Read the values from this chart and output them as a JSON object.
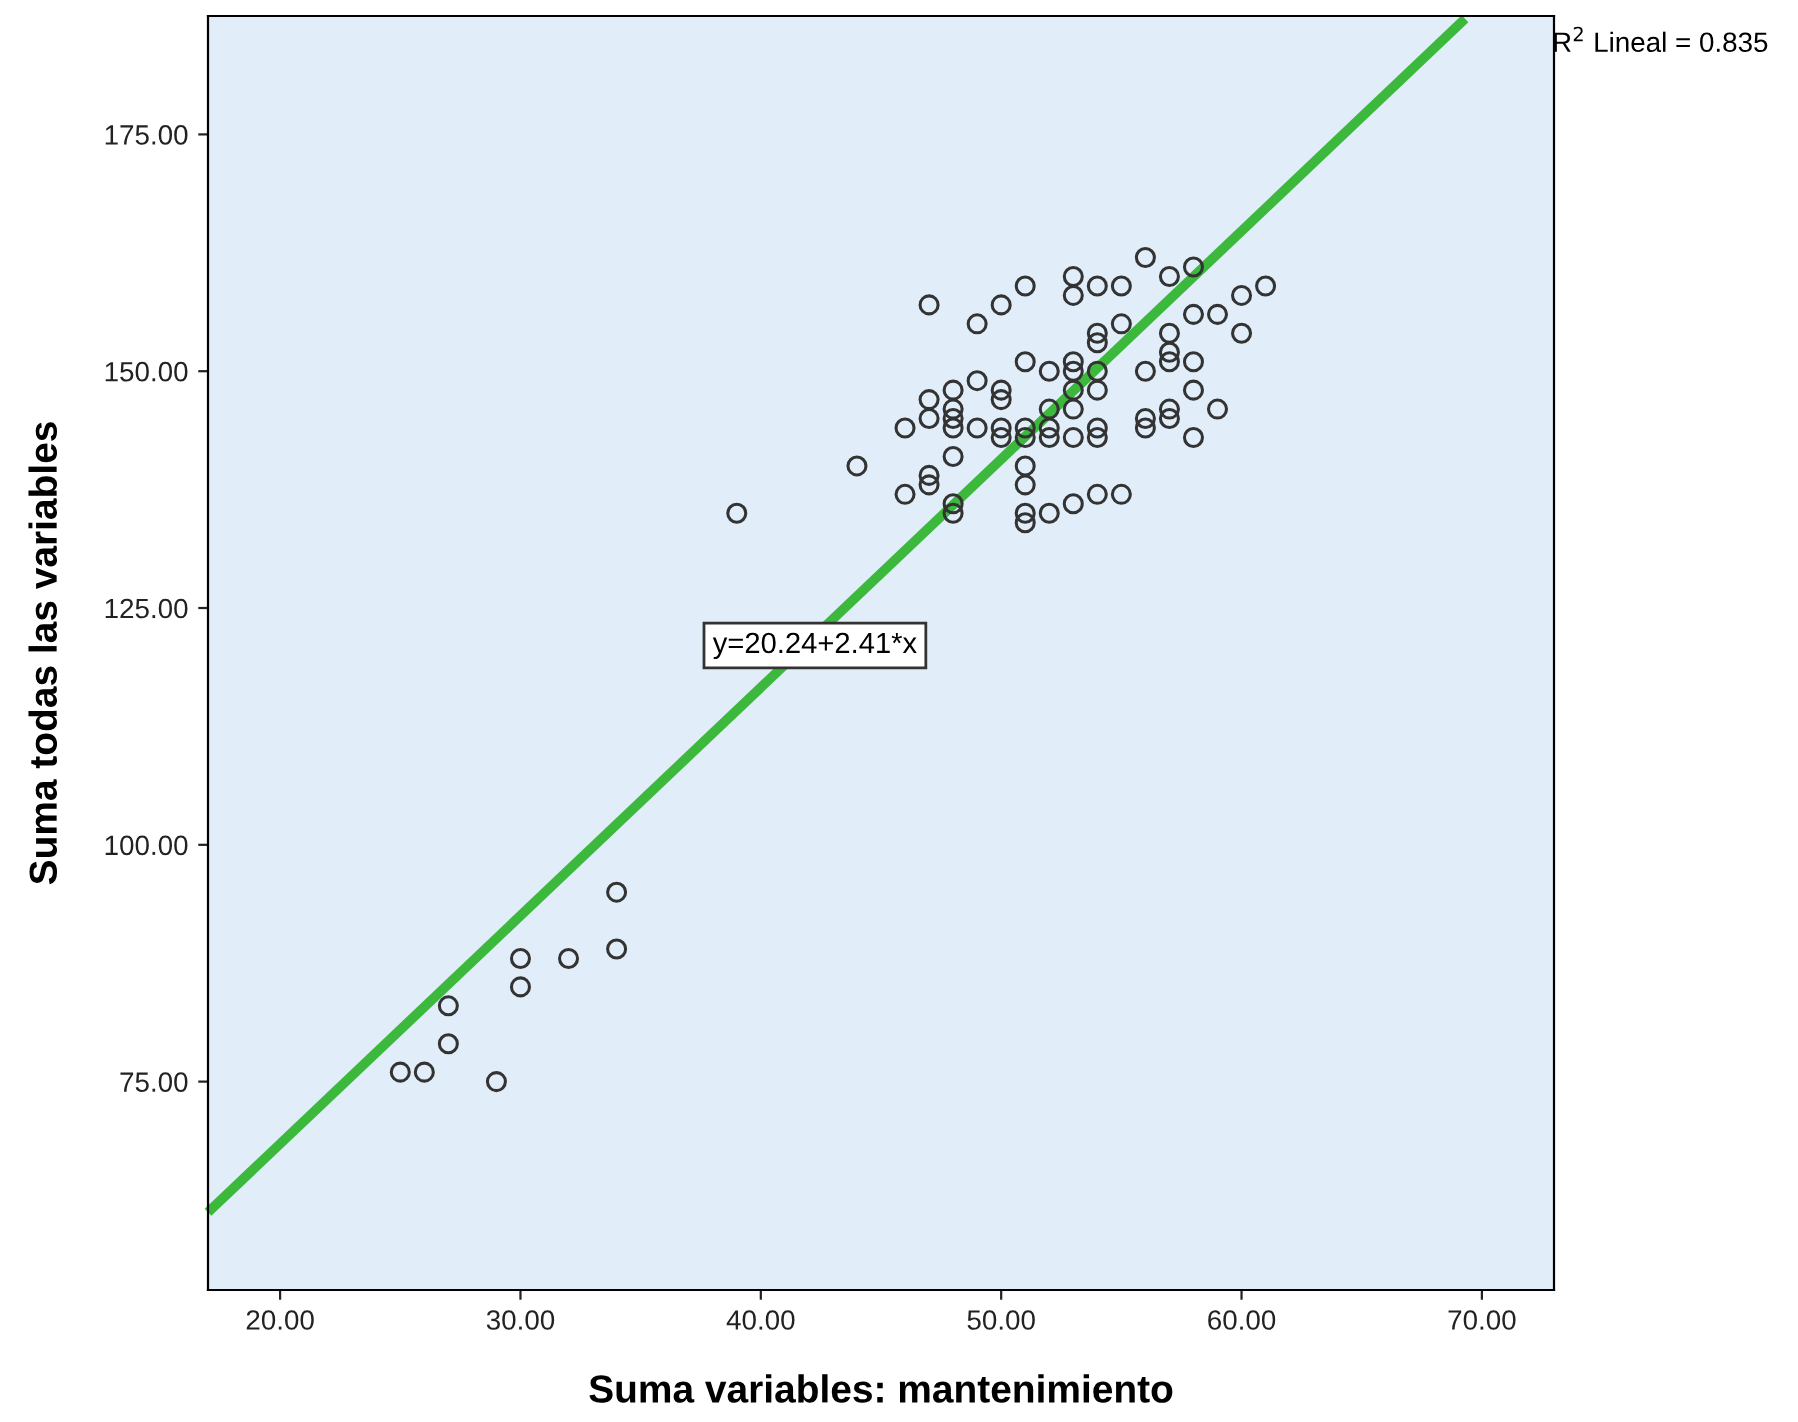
{
  "chart_data": {
    "type": "scatter",
    "xlabel": "Suma variables: mantenimiento",
    "ylabel": "Suma todas las variables",
    "xlim": [
      17,
      73
    ],
    "ylim": [
      53,
      187.5
    ],
    "xticks": [
      {
        "value": 20,
        "label": "20.00"
      },
      {
        "value": 30,
        "label": "30.00"
      },
      {
        "value": 40,
        "label": "40.00"
      },
      {
        "value": 50,
        "label": "50.00"
      },
      {
        "value": 60,
        "label": "60.00"
      },
      {
        "value": 70,
        "label": "70.00"
      }
    ],
    "yticks": [
      {
        "value": 75,
        "label": "75.00"
      },
      {
        "value": 100,
        "label": "100.00"
      },
      {
        "value": 125,
        "label": "125.00"
      },
      {
        "value": 150,
        "label": "150.00"
      },
      {
        "value": 175,
        "label": "175.00"
      }
    ],
    "grid": false,
    "annotations": [
      "y=20.24+2.41*x",
      "R$^{2}$ Lineal = 0.835"
    ],
    "series": [
      {
        "color": "#333333",
        "marker": "circle",
        "x": [
          25,
          26,
          27,
          27,
          29,
          30,
          30,
          32,
          34,
          34,
          39,
          44,
          46,
          46,
          47,
          47,
          47,
          47,
          47,
          48,
          48,
          48,
          48,
          48,
          48,
          48,
          49,
          49,
          49,
          50,
          50,
          50,
          50,
          50,
          51,
          51,
          51,
          51,
          51,
          51,
          51,
          51,
          52,
          52,
          52,
          52,
          52,
          53,
          53,
          53,
          53,
          53,
          53,
          53,
          53,
          54,
          54,
          54,
          54,
          54,
          54,
          54,
          54,
          55,
          55,
          55,
          56,
          56,
          56,
          56,
          57,
          57,
          57,
          57,
          57,
          57,
          58,
          58,
          58,
          58,
          58,
          59,
          59,
          60,
          60,
          61
        ],
        "values": [
          76,
          76,
          79,
          83,
          75,
          85,
          88,
          88,
          89,
          95,
          135,
          140,
          137,
          144,
          157,
          147,
          145,
          139,
          138,
          148,
          146,
          145,
          144,
          141,
          136,
          135,
          155,
          149,
          144,
          157,
          148,
          147,
          144,
          143,
          159,
          151,
          144,
          143,
          140,
          138,
          135,
          134,
          150,
          146,
          144,
          143,
          135,
          160,
          158,
          151,
          150,
          148,
          146,
          143,
          136,
          159,
          154,
          153,
          150,
          148,
          144,
          143,
          137,
          159,
          155,
          137,
          162,
          150,
          145,
          144,
          160,
          154,
          152,
          151,
          146,
          145,
          161,
          156,
          151,
          148,
          143,
          156,
          146,
          158,
          154,
          159
        ]
      },
      {
        "type": "line",
        "color": "#3cb93c",
        "line_style": "solid",
        "x": [
          17,
          69.3
        ],
        "values": [
          61.2,
          187.2
        ]
      }
    ]
  }
}
